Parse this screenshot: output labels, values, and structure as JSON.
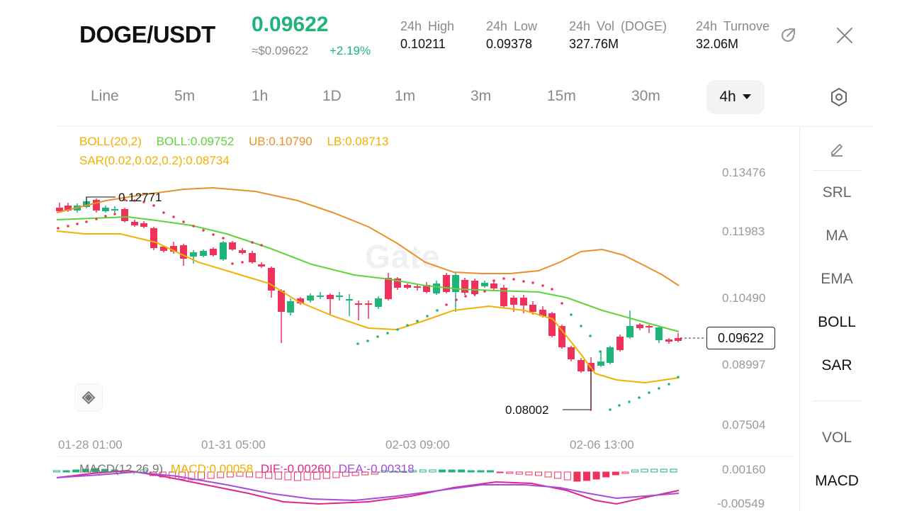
{
  "header": {
    "pair": "DOGE/USDT",
    "price": "0.09622",
    "approx": "≈$0.09622",
    "change": "+2.19%",
    "stats": [
      {
        "label": "24h High",
        "value": "0.10211"
      },
      {
        "label": "24h Low",
        "value": "0.09378"
      },
      {
        "label": "24h Vol (DOGE)",
        "value": "327.76M"
      },
      {
        "label": "24h Turnover",
        "value": "32.06M"
      }
    ],
    "share_icon": "share-icon",
    "close_icon": "close-icon"
  },
  "timeframes": [
    "Line",
    "5m",
    "1h",
    "1D",
    "1m",
    "3m",
    "15m",
    "30m"
  ],
  "active_timeframe": "4h",
  "settings_icon": "settings-hexagon-icon",
  "indicators": {
    "boll": "BOLL(20,2)",
    "boll_mid": "BOLL:0.09752",
    "ub": "UB:0.10790",
    "lb": "LB:0.08713",
    "sar": "SAR(0.02,0.02,0.2):0.08734"
  },
  "chart": {
    "y_labels": [
      "0.13476",
      "0.11983",
      "0.10490",
      "0.08997",
      "0.07504"
    ],
    "x_labels": [
      "01-28 01:00",
      "01-31 05:00",
      "02-03 09:00",
      "02-06 13:00"
    ],
    "current_price": "0.09622",
    "high_marker": "0.12771",
    "low_marker": "0.08002",
    "watermark": "Gate",
    "macd_label": "MACD(12,26,9)",
    "macd_value": "MACD:0.00058",
    "dif_value": "DIF:-0.00260",
    "dea_value": "DEA:-0.00318",
    "macd_y_labels": [
      "0.00160",
      "-0.00549"
    ],
    "colors": {
      "up": "#1fb47a",
      "down": "#f0325a",
      "ub": "#e8922a",
      "mid": "#5fd33a",
      "lb": "#f3b000",
      "dif": "#e0288a",
      "dea": "#a64de0"
    }
  },
  "side_panel": {
    "items": [
      "SRL",
      "MA",
      "EMA",
      "BOLL",
      "SAR",
      "VOL",
      "MACD"
    ],
    "draw_icon": "pencil-icon"
  }
}
